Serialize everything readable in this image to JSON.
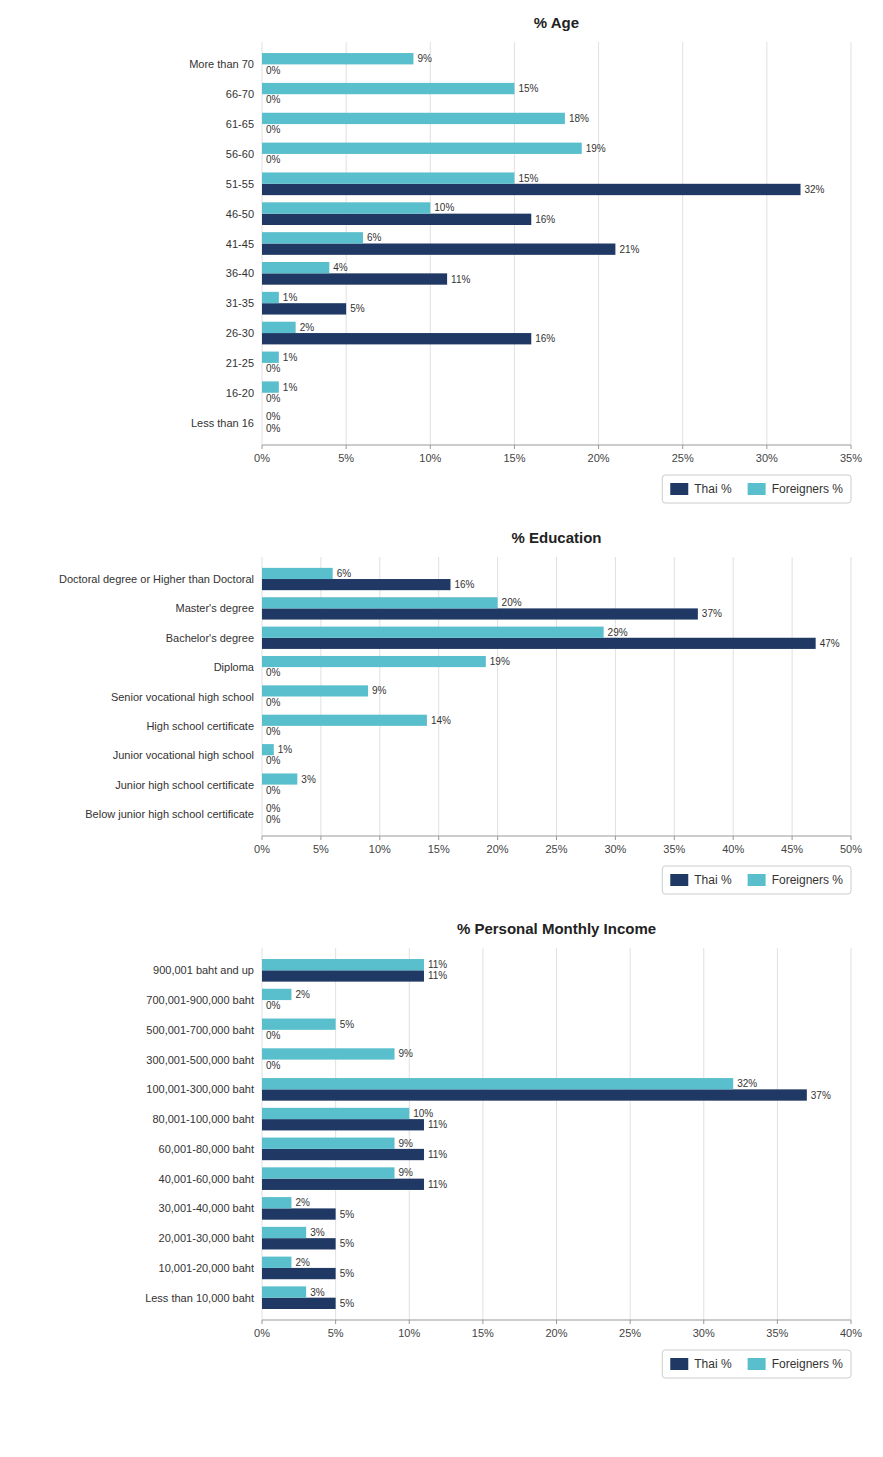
{
  "chart_data": [
    {
      "type": "bar",
      "orientation": "horizontal",
      "title": "% Age",
      "categories": [
        "More than 70",
        "66-70",
        "61-65",
        "56-60",
        "51-55",
        "46-50",
        "41-45",
        "36-40",
        "31-35",
        "26-30",
        "21-25",
        "16-20",
        "Less than 16"
      ],
      "series": [
        {
          "name": "Thai %",
          "color": "#1f3864",
          "values": [
            0,
            0,
            0,
            0,
            32,
            16,
            21,
            11,
            5,
            16,
            0,
            0,
            0
          ],
          "value_labels": [
            "0%",
            "0%",
            "0%",
            "0%",
            "32%",
            "16%",
            "21%",
            "11%",
            "5%",
            "16%",
            "0%",
            "0%",
            "0%"
          ]
        },
        {
          "name": "Foreigners %",
          "color": "#5abfcc",
          "values": [
            9,
            15,
            18,
            19,
            15,
            10,
            6,
            4,
            1,
            2,
            1,
            1,
            0
          ],
          "value_labels": [
            "9%",
            "15%",
            "18%",
            "19%",
            "15%",
            "10%",
            "6%",
            "4%",
            "1%",
            "2%",
            "1%",
            "1%",
            "0%"
          ]
        }
      ],
      "xlim": [
        0,
        35
      ],
      "xticks": [
        {
          "value": 0,
          "label": "0%"
        },
        {
          "value": 5,
          "label": "5%"
        },
        {
          "value": 10,
          "label": "10%"
        },
        {
          "value": 15,
          "label": "15%"
        },
        {
          "value": 20,
          "label": "20%"
        },
        {
          "value": 25,
          "label": "25%"
        },
        {
          "value": 30,
          "label": "30%"
        },
        {
          "value": 35,
          "label": "35%"
        }
      ],
      "grid": true,
      "legend": "lower right",
      "data_labels": true
    },
    {
      "type": "bar",
      "orientation": "horizontal",
      "title": "% Education",
      "categories": [
        "Doctoral degree or Higher than Doctoral",
        "Master's degree",
        "Bachelor's degree",
        "Diploma",
        "Senior vocational high school",
        "High school certificate",
        "Junior vocational high school",
        "Junior high school certificate",
        "Below junior high school certificate"
      ],
      "series": [
        {
          "name": "Thai %",
          "color": "#1f3864",
          "values": [
            16,
            37,
            47,
            0,
            0,
            0,
            0,
            0,
            0
          ],
          "value_labels": [
            "16%",
            "37%",
            "47%",
            "0%",
            "0%",
            "0%",
            "0%",
            "0%",
            "0%"
          ]
        },
        {
          "name": "Foreigners %",
          "color": "#5abfcc",
          "values": [
            6,
            20,
            29,
            19,
            9,
            14,
            1,
            3,
            0
          ],
          "value_labels": [
            "6%",
            "20%",
            "29%",
            "19%",
            "9%",
            "14%",
            "1%",
            "3%",
            "0%"
          ]
        }
      ],
      "xlim": [
        0,
        50
      ],
      "xticks": [
        {
          "value": 0,
          "label": "0%"
        },
        {
          "value": 5,
          "label": "5%"
        },
        {
          "value": 10,
          "label": "10%"
        },
        {
          "value": 15,
          "label": "15%"
        },
        {
          "value": 20,
          "label": "20%"
        },
        {
          "value": 25,
          "label": "25%"
        },
        {
          "value": 30,
          "label": "30%"
        },
        {
          "value": 35,
          "label": "35%"
        },
        {
          "value": 40,
          "label": "40%"
        },
        {
          "value": 45,
          "label": "45%"
        },
        {
          "value": 50,
          "label": "50%"
        }
      ],
      "grid": true,
      "legend": "lower right",
      "data_labels": true
    },
    {
      "type": "bar",
      "orientation": "horizontal",
      "title": "% Personal Monthly Income",
      "categories": [
        "900,001 baht and up",
        "700,001-900,000 baht",
        "500,001-700,000 baht",
        "300,001-500,000 baht",
        "100,001-300,000 baht",
        "80,001-100,000 baht",
        "60,001-80,000 baht",
        "40,001-60,000 baht",
        "30,001-40,000 baht",
        "20,001-30,000 baht",
        "10,001-20,000 baht",
        "Less than 10,000 baht"
      ],
      "series": [
        {
          "name": "Thai %",
          "color": "#1f3864",
          "values": [
            11,
            0,
            0,
            0,
            37,
            11,
            11,
            11,
            5,
            5,
            5,
            5
          ],
          "value_labels": [
            "11%",
            "0%",
            "0%",
            "0%",
            "37%",
            "11%",
            "11%",
            "11%",
            "5%",
            "5%",
            "5%",
            "5%"
          ]
        },
        {
          "name": "Foreigners %",
          "color": "#5abfcc",
          "values": [
            11,
            2,
            5,
            9,
            32,
            10,
            9,
            9,
            2,
            3,
            2,
            3
          ],
          "value_labels": [
            "11%",
            "2%",
            "5%",
            "9%",
            "32%",
            "10%",
            "9%",
            "9%",
            "2%",
            "3%",
            "2%",
            "3%"
          ]
        }
      ],
      "xlim": [
        0,
        40
      ],
      "xticks": [
        {
          "value": 0,
          "label": "0%"
        },
        {
          "value": 5,
          "label": "5%"
        },
        {
          "value": 10,
          "label": "10%"
        },
        {
          "value": 15,
          "label": "15%"
        },
        {
          "value": 20,
          "label": "20%"
        },
        {
          "value": 25,
          "label": "25%"
        },
        {
          "value": 30,
          "label": "30%"
        },
        {
          "value": 35,
          "label": "35%"
        },
        {
          "value": 40,
          "label": "40%"
        }
      ],
      "grid": true,
      "legend": "lower right",
      "data_labels": true
    }
  ]
}
